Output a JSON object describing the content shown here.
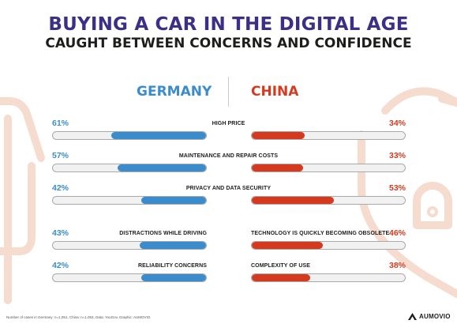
{
  "title": "BUYING A CAR IN THE DIGITAL AGE",
  "subtitle": "CAUGHT BETWEEN CONCERNS AND CONFIDENCE",
  "footnote": "Number of cases in Germany: n=1,051, China: n=1,053, Data: YouGov, Graphic: AUMOVIO.",
  "brand": "AUMOVIO",
  "colors": {
    "germany": "#3a8ccc",
    "china": "#d63a1e",
    "title": "#3b2f86",
    "track": "#f1f1f1",
    "decoration": "#f6dccf"
  },
  "chart_data": {
    "type": "bar",
    "series": [
      {
        "name": "GERMANY",
        "side": "left",
        "color": "#3a8ccc"
      },
      {
        "name": "CHINA",
        "side": "right",
        "color": "#d63a1e"
      }
    ],
    "unit": "%",
    "shared": [
      {
        "label": "HIGH PRICE",
        "germany": 61,
        "china": 34
      },
      {
        "label": "MAINTENANCE AND REPAIR COSTS",
        "germany": 57,
        "china": 33
      },
      {
        "label": "PRIVACY AND DATA SECURITY",
        "germany": 42,
        "china": 53
      }
    ],
    "germany_only": [
      {
        "label": "DISTRACTIONS WHILE DRIVING",
        "value": 43
      },
      {
        "label": "RELIABILITY CONCERNS",
        "value": 42
      }
    ],
    "china_only": [
      {
        "label": "TECHNOLOGY IS QUICKLY BECOMING OBSOLETE",
        "value": 46
      },
      {
        "label": "COMPLEXITY OF USE",
        "value": 38
      }
    ],
    "xlim": [
      0,
      100
    ]
  }
}
